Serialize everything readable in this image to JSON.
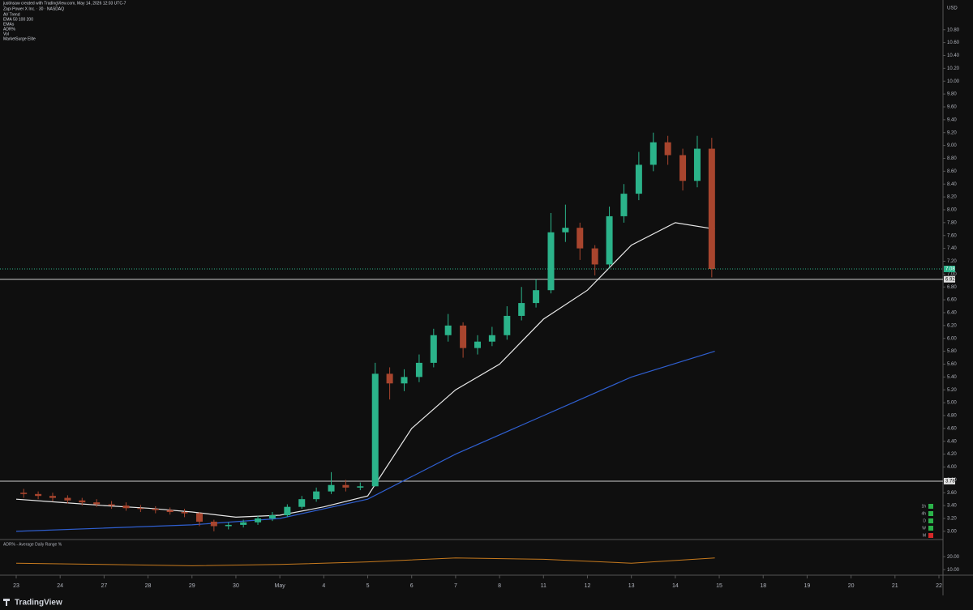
{
  "chart_data": {
    "type": "candlestick",
    "title": "Zapi Power X Inc. · 30 · NASDAQ",
    "subtitle": "justinsaw created with TradingView.com, May 14, 2026 12:03 UTC-7",
    "header_lines": [
      "AV Trend",
      "EMA 50 100 200",
      "EMAs",
      "ADR%",
      "Vol",
      "MarketSurge Elite"
    ],
    "currency": "USD",
    "up_color": "#2bb38a",
    "down_color": "#a8452e",
    "x": [
      0.17,
      0.5,
      0.83,
      1.17,
      1.5,
      1.83,
      2.17,
      2.5,
      2.83,
      3.17,
      3.5,
      3.83,
      4.17,
      4.5,
      4.83,
      5.17,
      5.5,
      5.83,
      6.17,
      6.5,
      6.83,
      7.17,
      7.5,
      7.83,
      8.17,
      8.5,
      8.83,
      9.17,
      9.5,
      9.83,
      10.17,
      10.5,
      10.83,
      11.17,
      11.5,
      11.83,
      12.17,
      12.5,
      12.83,
      13.17,
      13.5,
      13.83,
      14.17,
      14.5,
      14.83,
      15.17,
      15.5,
      15.83
    ],
    "open": [
      3.6,
      3.58,
      3.55,
      3.52,
      3.48,
      3.45,
      3.42,
      3.4,
      3.36,
      3.35,
      3.33,
      3.3,
      3.28,
      3.15,
      3.08,
      3.1,
      3.14,
      3.2,
      3.25,
      3.38,
      3.5,
      3.62,
      3.72,
      3.68,
      3.7,
      5.45,
      5.3,
      5.4,
      5.62,
      6.05,
      6.2,
      5.85,
      5.95,
      6.05,
      6.35,
      6.55,
      6.75,
      7.65,
      7.72,
      7.4,
      7.15,
      7.9,
      8.25,
      8.7,
      9.05,
      8.85,
      8.45,
      8.95
    ],
    "high": [
      3.66,
      3.62,
      3.6,
      3.56,
      3.52,
      3.5,
      3.47,
      3.45,
      3.41,
      3.39,
      3.37,
      3.35,
      3.3,
      3.18,
      3.14,
      3.18,
      3.24,
      3.3,
      3.42,
      3.55,
      3.68,
      3.92,
      3.8,
      3.76,
      5.62,
      5.55,
      5.52,
      5.75,
      6.15,
      6.38,
      6.25,
      6.05,
      6.18,
      6.5,
      6.8,
      6.92,
      7.95,
      8.08,
      7.8,
      7.45,
      8.05,
      8.4,
      8.9,
      9.2,
      9.15,
      8.95,
      9.15,
      9.12
    ],
    "low": [
      3.52,
      3.5,
      3.47,
      3.43,
      3.4,
      3.38,
      3.35,
      3.32,
      3.3,
      3.28,
      3.26,
      3.22,
      3.08,
      3.0,
      3.03,
      3.06,
      3.1,
      3.16,
      3.22,
      3.35,
      3.46,
      3.58,
      3.62,
      3.64,
      3.7,
      5.05,
      5.18,
      5.32,
      5.55,
      5.95,
      5.7,
      5.75,
      5.88,
      5.98,
      6.28,
      6.48,
      6.7,
      7.5,
      7.22,
      6.98,
      7.1,
      7.8,
      8.15,
      8.6,
      8.7,
      8.3,
      8.35,
      6.95
    ],
    "close": [
      3.58,
      3.55,
      3.52,
      3.48,
      3.45,
      3.42,
      3.4,
      3.36,
      3.35,
      3.33,
      3.3,
      3.28,
      3.15,
      3.08,
      3.1,
      3.14,
      3.2,
      3.25,
      3.38,
      3.5,
      3.62,
      3.72,
      3.68,
      3.7,
      5.45,
      5.3,
      5.4,
      5.62,
      6.05,
      6.2,
      5.85,
      5.95,
      6.05,
      6.35,
      6.55,
      6.75,
      7.65,
      7.72,
      7.4,
      7.15,
      7.9,
      8.25,
      8.7,
      9.05,
      8.85,
      8.45,
      8.95,
      7.08
    ],
    "lines": [
      {
        "color": "#e8e8e8",
        "x": [
          0,
          1,
          2,
          3,
          4,
          5,
          6,
          7,
          8,
          9,
          10,
          11,
          12,
          13,
          14,
          15,
          15.9
        ],
        "values": [
          3.5,
          3.45,
          3.4,
          3.36,
          3.3,
          3.22,
          3.25,
          3.38,
          3.55,
          4.6,
          5.2,
          5.6,
          6.3,
          6.75,
          7.45,
          7.8,
          7.7
        ]
      },
      {
        "color": "#2f5fd0",
        "x": [
          0,
          2,
          4,
          6,
          8,
          10,
          12,
          14,
          15.9
        ],
        "values": [
          3.0,
          3.05,
          3.1,
          3.2,
          3.5,
          4.2,
          4.8,
          5.4,
          5.8
        ]
      }
    ],
    "levels": [
      6.92,
      3.78
    ],
    "xlim": [
      -0.37,
      21.7
    ],
    "ylim": [
      2.91,
      10.91
    ],
    "xticks": [
      {
        "value": 0,
        "label": "23"
      },
      {
        "value": 1,
        "label": "24"
      },
      {
        "value": 2,
        "label": "27"
      },
      {
        "value": 3,
        "label": "28"
      },
      {
        "value": 4,
        "label": "29"
      },
      {
        "value": 5,
        "label": "30"
      },
      {
        "value": 6,
        "label": "May"
      },
      {
        "value": 7,
        "label": "4"
      },
      {
        "value": 8,
        "label": "5"
      },
      {
        "value": 9,
        "label": "6"
      },
      {
        "value": 10,
        "label": "7"
      },
      {
        "value": 11,
        "label": "8"
      },
      {
        "value": 12,
        "label": "11"
      },
      {
        "value": 13,
        "label": "12"
      },
      {
        "value": 14,
        "label": "13"
      },
      {
        "value": 15,
        "label": "14"
      },
      {
        "value": 16,
        "label": "15"
      },
      {
        "value": 17,
        "label": "18"
      },
      {
        "value": 18,
        "label": "19"
      },
      {
        "value": 19,
        "label": "20"
      },
      {
        "value": 20,
        "label": "21"
      },
      {
        "value": 21,
        "label": "22"
      }
    ],
    "yticks": [
      {
        "value": 3.0,
        "label": "3.00"
      },
      {
        "value": 3.2,
        "label": "3.20"
      },
      {
        "value": 3.4,
        "label": "3.40"
      },
      {
        "value": 3.6,
        "label": "3.60"
      },
      {
        "value": 3.8,
        "label": "3.80"
      },
      {
        "value": 4.0,
        "label": "4.00"
      },
      {
        "value": 4.2,
        "label": "4.20"
      },
      {
        "value": 4.4,
        "label": "4.40"
      },
      {
        "value": 4.6,
        "label": "4.60"
      },
      {
        "value": 4.8,
        "label": "4.80"
      },
      {
        "value": 5.0,
        "label": "5.00"
      },
      {
        "value": 5.2,
        "label": "5.20"
      },
      {
        "value": 5.4,
        "label": "5.40"
      },
      {
        "value": 5.6,
        "label": "5.60"
      },
      {
        "value": 5.8,
        "label": "5.80"
      },
      {
        "value": 6.0,
        "label": "6.00"
      },
      {
        "value": 6.2,
        "label": "6.20"
      },
      {
        "value": 6.4,
        "label": "6.40"
      },
      {
        "value": 6.6,
        "label": "6.60"
      },
      {
        "value": 6.8,
        "label": "6.80"
      },
      {
        "value": 7.0,
        "label": "7.00"
      },
      {
        "value": 7.2,
        "label": "7.20"
      },
      {
        "value": 7.4,
        "label": "7.40"
      },
      {
        "value": 7.6,
        "label": "7.60"
      },
      {
        "value": 7.8,
        "label": "7.80"
      },
      {
        "value": 8.0,
        "label": "8.00"
      },
      {
        "value": 8.2,
        "label": "8.20"
      },
      {
        "value": 8.4,
        "label": "8.40"
      },
      {
        "value": 8.6,
        "label": "8.60"
      },
      {
        "value": 8.8,
        "label": "8.80"
      },
      {
        "value": 9.0,
        "label": "9.00"
      },
      {
        "value": 9.2,
        "label": "9.20"
      },
      {
        "value": 9.4,
        "label": "9.40"
      },
      {
        "value": 9.6,
        "label": "9.60"
      },
      {
        "value": 9.8,
        "label": "9.80"
      },
      {
        "value": 10.0,
        "label": "10.00"
      },
      {
        "value": 10.2,
        "label": "10.20"
      },
      {
        "value": 10.4,
        "label": "10.40"
      },
      {
        "value": 10.6,
        "label": "10.60"
      },
      {
        "value": 10.8,
        "label": "10.80"
      }
    ],
    "timeframes": [
      {
        "label": "1h",
        "color": "#2bb34a"
      },
      {
        "label": "4h",
        "color": "#2bb34a"
      },
      {
        "label": "D",
        "color": "#2bb34a"
      },
      {
        "label": "W",
        "color": "#2bb34a"
      },
      {
        "label": "M",
        "color": "#d62828"
      }
    ],
    "indicator": {
      "title": "ADR% - Average Daily Range %",
      "color": "#c77a1e",
      "x": [
        0,
        2,
        4,
        6,
        8,
        10,
        12,
        14,
        15.9
      ],
      "values": [
        15,
        14,
        13,
        14,
        16,
        19,
        18,
        15,
        19
      ],
      "ylim": [
        7,
        32
      ],
      "yticks": [
        {
          "value": 10,
          "label": "10.00"
        },
        {
          "value": 20,
          "label": "20.00"
        }
      ]
    },
    "brand": "TradingView"
  }
}
